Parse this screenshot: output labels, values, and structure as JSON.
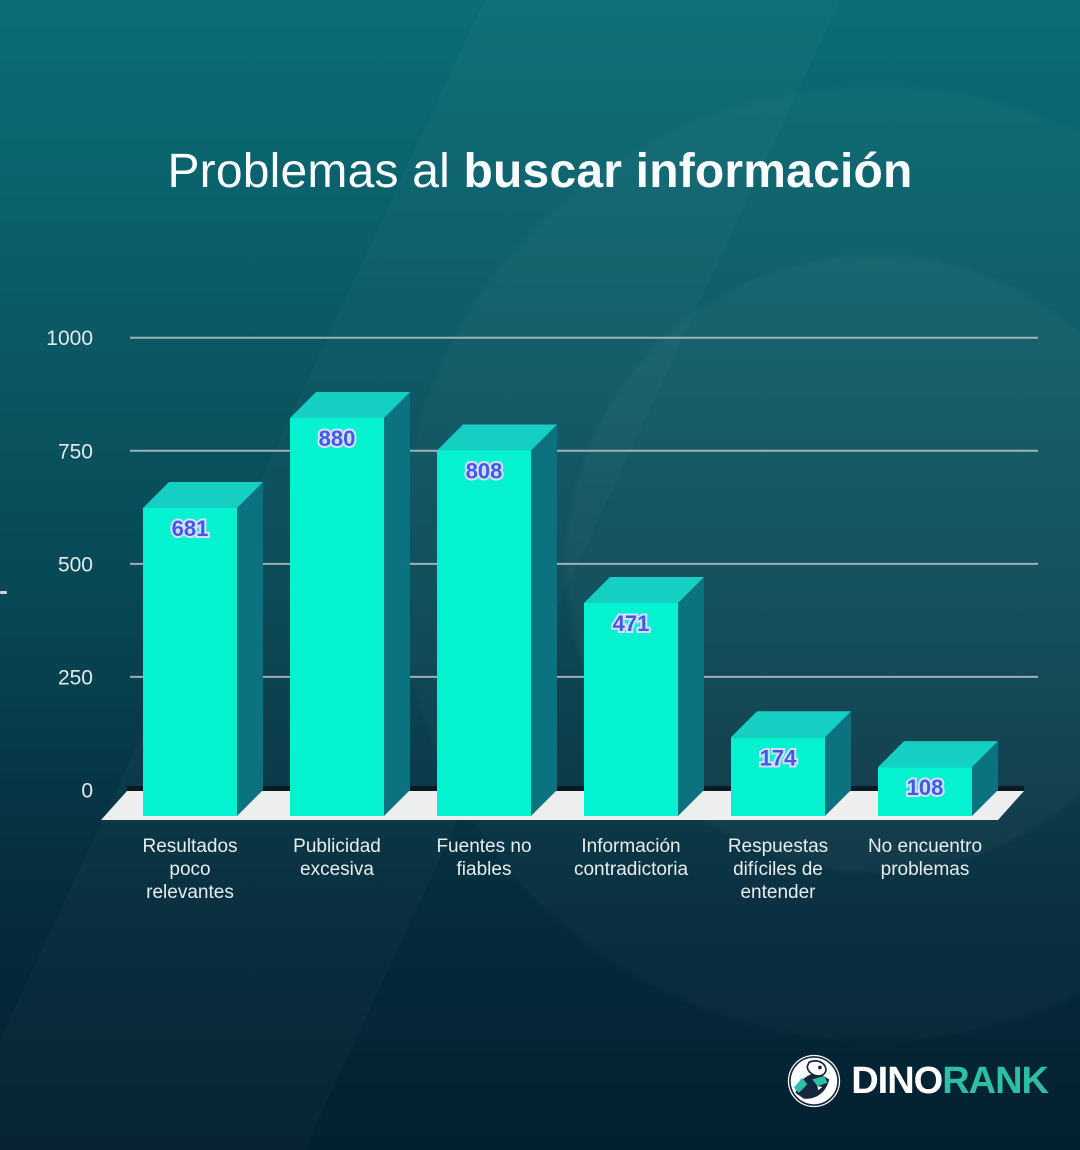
{
  "title": {
    "prefix": "Problemas al ",
    "emphasis": "buscar información"
  },
  "chart_data": {
    "type": "bar",
    "style": "3d-columns",
    "title": "Problemas al buscar información",
    "categories": [
      "Resultados poco relevantes",
      "Publicidad excesiva",
      "Fuentes no fiables",
      "Información contradictoria",
      "Respuestas difíciles de entender",
      "No encuentro problemas"
    ],
    "category_lines": [
      [
        "Resultados",
        "poco",
        "relevantes"
      ],
      [
        "Publicidad",
        "excesiva"
      ],
      [
        "Fuentes no",
        "fiables"
      ],
      [
        "Información",
        "contradictoria"
      ],
      [
        "Respuestas",
        "difíciles de",
        "entender"
      ],
      [
        "No encuentro",
        "problemas"
      ]
    ],
    "values": [
      681,
      880,
      808,
      471,
      174,
      108
    ],
    "yticks": [
      0,
      250,
      500,
      750,
      1000
    ],
    "ylim": [
      0,
      1000
    ],
    "grid": true,
    "legend": false,
    "colors": {
      "background_top": "#0B6D76",
      "background_bottom": "#03202F",
      "bar_front": "#05F2D1",
      "bar_top": "#15CFC2",
      "bar_side": "#0B7280",
      "value_text": "#3D5BE8",
      "value_outline": "#D8DEFA",
      "gridline": "#AFBAC0",
      "floor": "#EDEFEF",
      "floor_shadow": "#0B171D",
      "axis_text": "#E3EAEC",
      "category_text": "#E8EDEE",
      "title_text": "#FAFBFC"
    }
  },
  "footer": {
    "logo_icon": "dinorank-dino-badge",
    "brand_first": "DINO",
    "brand_second": "RANK"
  }
}
